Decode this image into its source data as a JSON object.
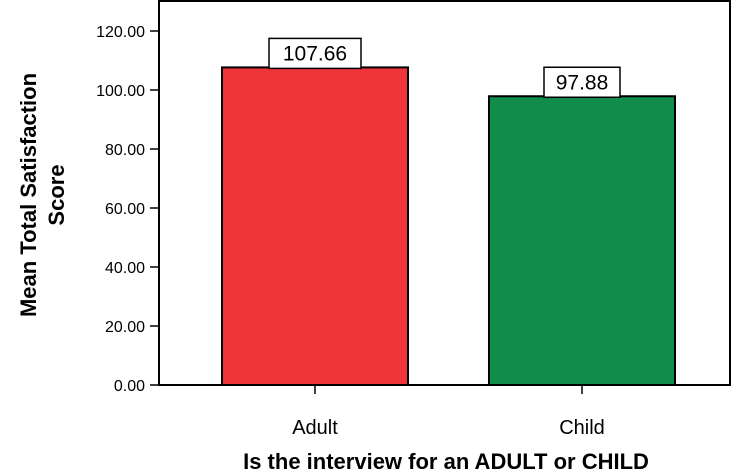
{
  "chart_data": {
    "type": "bar",
    "title": "",
    "xlabel": "Is the interview for an ADULT or CHILD",
    "ylabel_lines": [
      "Mean Total Satisfaction",
      "Score"
    ],
    "categories": [
      "Adult",
      "Child"
    ],
    "values": [
      107.66,
      97.88
    ],
    "value_labels": [
      "107.66",
      "97.88"
    ],
    "bar_colors": [
      "#ef343a",
      "#128c4a"
    ],
    "ylim": [
      0,
      120
    ],
    "yticks": [
      0,
      20,
      40,
      60,
      80,
      100,
      120
    ],
    "ytick_labels": [
      "0.00",
      "20.00",
      "40.00",
      "60.00",
      "80.00",
      "100.00",
      "120.00"
    ],
    "grid": false,
    "legend": "none"
  }
}
